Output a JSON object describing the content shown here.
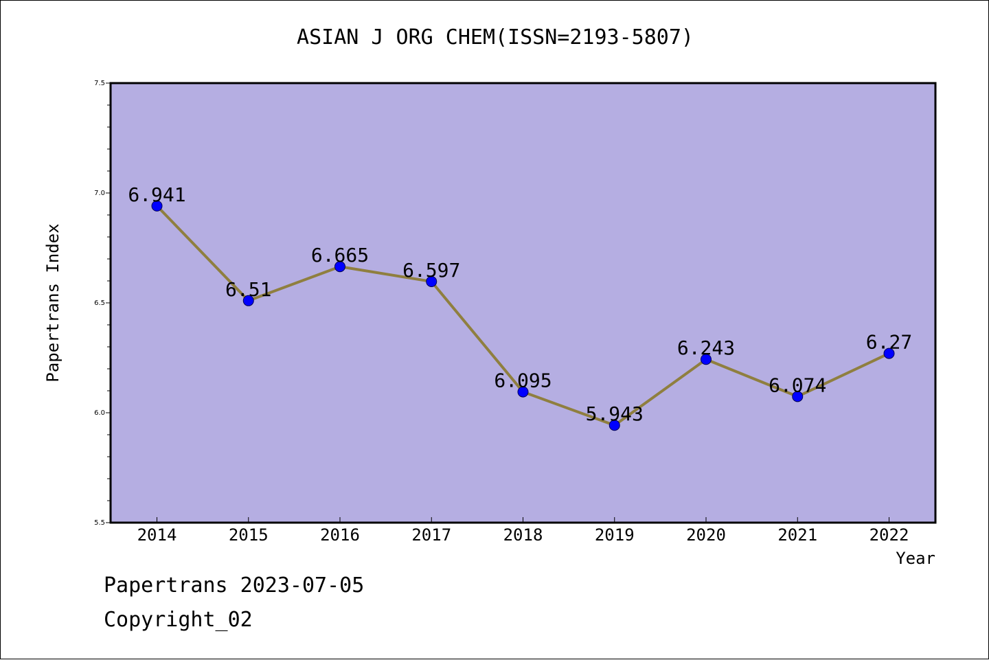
{
  "chart_data": {
    "type": "line",
    "title": "ASIAN J ORG CHEM(ISSN=2193-5807)",
    "xlabel": "Year",
    "ylabel": "Papertrans Index",
    "categories": [
      "2014",
      "2015",
      "2016",
      "2017",
      "2018",
      "2019",
      "2020",
      "2021",
      "2022"
    ],
    "values": [
      6.941,
      6.51,
      6.665,
      6.597,
      6.095,
      5.943,
      6.243,
      6.074,
      6.27
    ],
    "data_labels": [
      "6.941",
      "6.51",
      "6.665",
      "6.597",
      "6.095",
      "5.943",
      "6.243",
      "6.074",
      "6.27"
    ],
    "ylim": [
      5.5,
      7.5
    ],
    "yticks": [
      "5.5",
      "6.0",
      "6.5",
      "7.0",
      "7.5"
    ],
    "grid": false,
    "colors": {
      "plot_background": "#b5aee2",
      "line": "#8f7f3f",
      "marker": "#0000ff",
      "axis": "#000000"
    }
  },
  "footer": {
    "date": "Papertrans 2023-07-05",
    "copyright": "Copyright_02"
  }
}
